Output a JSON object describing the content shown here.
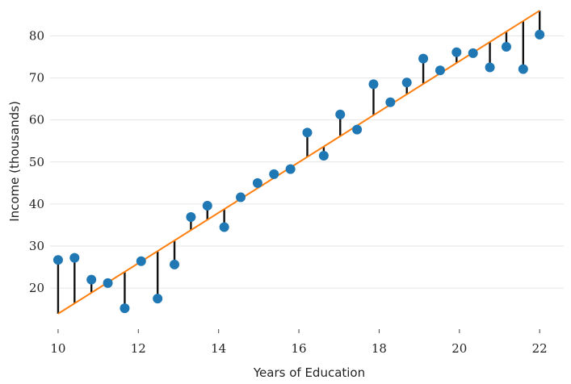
{
  "chart_data": {
    "type": "scatter",
    "title": "",
    "xlabel": "Years of Education",
    "ylabel": "Income (thousands)",
    "xlim": [
      9.8,
      22.6
    ],
    "ylim": [
      11,
      87
    ],
    "xticks": [
      10,
      12,
      14,
      16,
      18,
      20,
      22
    ],
    "yticks": [
      20,
      30,
      40,
      50,
      60,
      70,
      80
    ],
    "grid": "horizontal",
    "legend": "none",
    "colors": {
      "points": "#1f77b4",
      "fit_line": "#ff7f0e",
      "residuals": "#111111",
      "grid": "#e6e6e6"
    },
    "series": [
      {
        "type": "scatter",
        "x": [
          10.0,
          10.41,
          10.83,
          11.24,
          11.66,
          12.07,
          12.48,
          12.9,
          13.31,
          13.72,
          14.14,
          14.55,
          14.97,
          15.38,
          15.79,
          16.21,
          16.62,
          17.03,
          17.45,
          17.86,
          18.28,
          18.69,
          19.1,
          19.52,
          19.93,
          20.34,
          20.76,
          21.17,
          21.59,
          22.0
        ],
        "y": [
          26.7,
          27.2,
          22.0,
          21.2,
          15.2,
          26.4,
          17.5,
          25.6,
          36.9,
          39.6,
          34.5,
          41.6,
          45.0,
          47.1,
          48.3,
          57.0,
          51.5,
          61.3,
          57.7,
          68.5,
          64.2,
          68.9,
          74.6,
          71.8,
          76.1,
          75.9,
          72.5,
          77.4,
          72.1,
          80.3
        ]
      },
      {
        "type": "line",
        "x": [
          10,
          22
        ],
        "y": [
          13.9,
          86.0
        ]
      }
    ]
  }
}
